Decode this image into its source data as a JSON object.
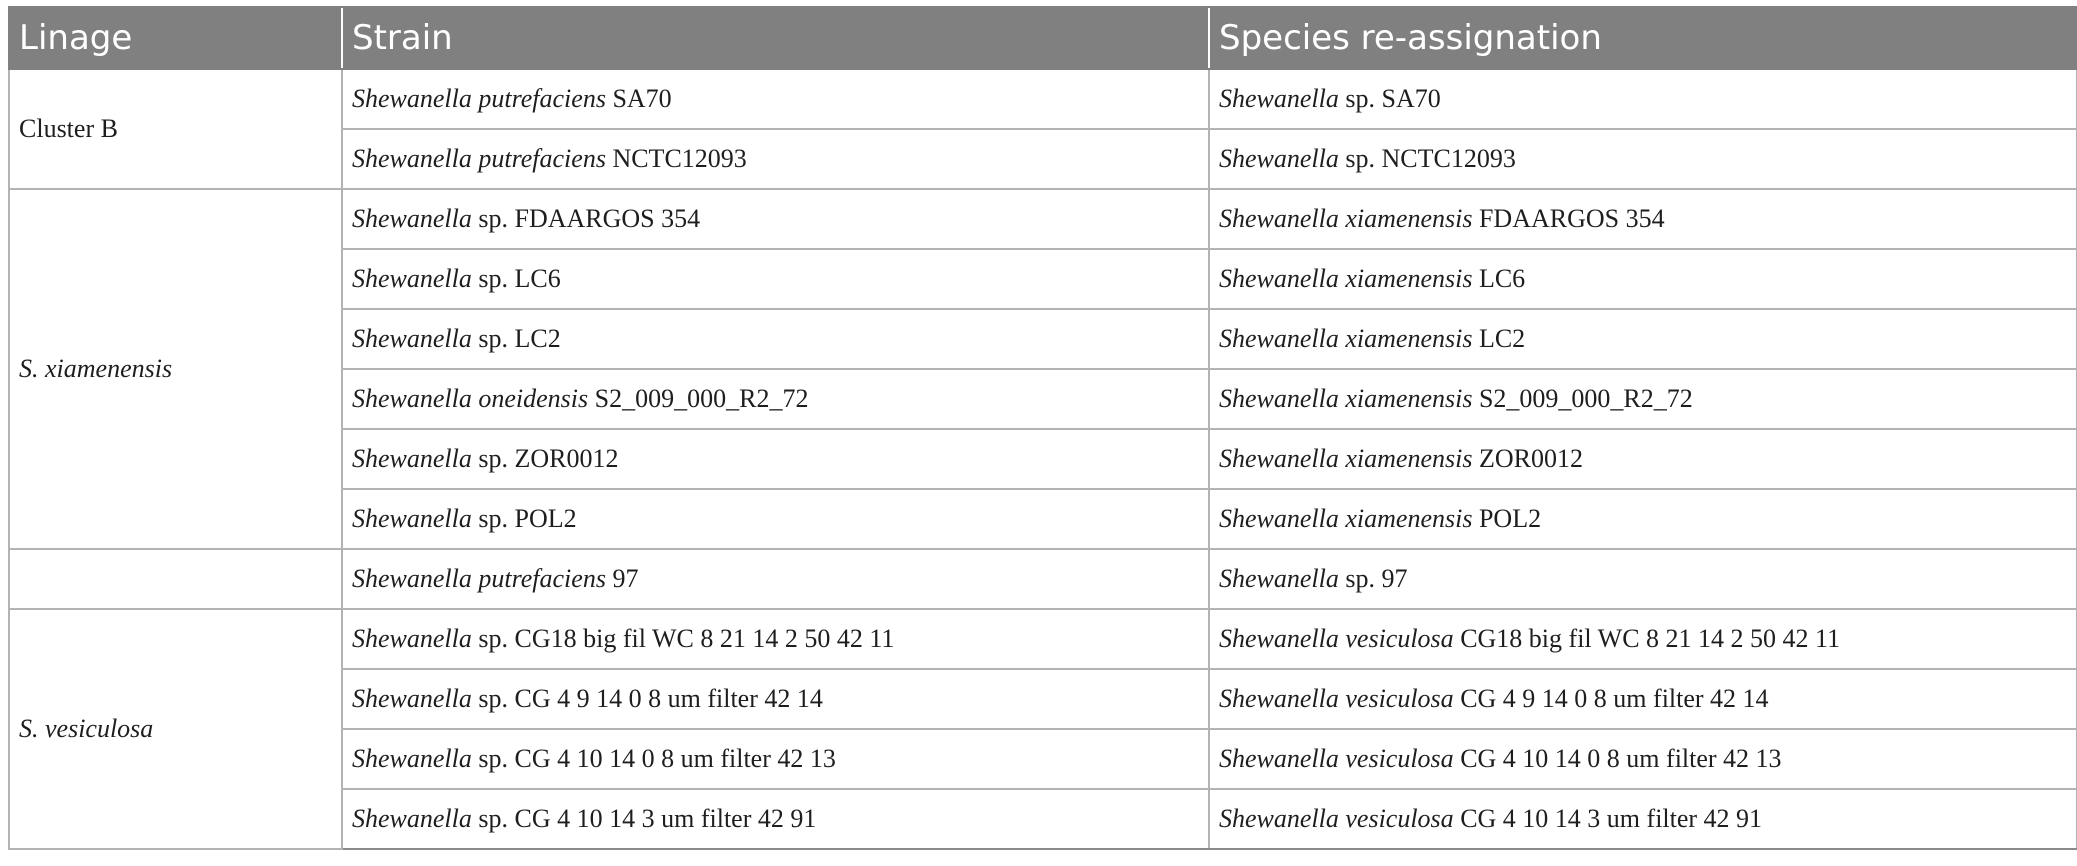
{
  "headers": [
    "Linage",
    "Strain",
    "Species re-assignation"
  ],
  "groups": [
    {
      "lineage": "Cluster B",
      "lineage_italic": false,
      "rows": [
        {
          "strain_italic": "Shewanella putrefaciens",
          "strain_rest": " SA70",
          "species_italic": "Shewanella",
          "species_rest": " sp. SA70"
        },
        {
          "strain_italic": "Shewanella putrefaciens",
          "strain_rest": " NCTC12093",
          "species_italic": "Shewanella",
          "species_rest": " sp. NCTC12093"
        }
      ]
    },
    {
      "lineage": "S. xiamenensis",
      "lineage_italic": true,
      "rows": [
        {
          "strain_italic": "Shewanella",
          "strain_rest": " sp. FDAARGOS 354",
          "species_italic": "Shewanella xiamenensis",
          "species_rest": " FDAARGOS 354"
        },
        {
          "strain_italic": "Shewanella",
          "strain_rest": " sp. LC6",
          "species_italic": "Shewanella xiamenensis",
          "species_rest": " LC6"
        },
        {
          "strain_italic": "Shewanella",
          "strain_rest": " sp. LC2",
          "species_italic": "Shewanella xiamenensis",
          "species_rest": " LC2"
        },
        {
          "strain_italic": "Shewanella oneidensis",
          "strain_rest": " S2_009_000_R2_72",
          "species_italic": "Shewanella xiamenensis",
          "species_rest": " S2_009_000_R2_72"
        },
        {
          "strain_italic": "Shewanella",
          "strain_rest": " sp. ZOR0012",
          "species_italic": "Shewanella xiamenensis",
          "species_rest": " ZOR0012"
        },
        {
          "strain_italic": "Shewanella",
          "strain_rest": " sp. POL2",
          "species_italic": "Shewanella xiamenensis",
          "species_rest": " POL2"
        }
      ]
    },
    {
      "lineage": "",
      "lineage_italic": false,
      "rows": [
        {
          "strain_italic": "Shewanella putrefaciens",
          "strain_rest": " 97",
          "species_italic": "Shewanella",
          "species_rest": " sp. 97"
        }
      ]
    },
    {
      "lineage": "S. vesiculosa",
      "lineage_italic": true,
      "rows": [
        {
          "strain_italic": "Shewanella",
          "strain_rest": " sp. CG18 big fil WC 8 21 14 2 50 42 11",
          "species_italic": "Shewanella vesiculosa",
          "species_rest": " CG18 big fil WC 8 21 14 2 50 42 11"
        },
        {
          "strain_italic": "Shewanella",
          "strain_rest": " sp. CG 4 9 14 0 8 um filter 42 14",
          "species_italic": "Shewanella vesiculosa",
          "species_rest": " CG 4 9 14 0 8 um filter 42 14"
        },
        {
          "strain_italic": "Shewanella",
          "strain_rest": " sp. CG 4 10 14 0 8 um filter 42 13",
          "species_italic": "Shewanella vesiculosa",
          "species_rest": " CG 4 10 14 0 8 um filter 42 13"
        },
        {
          "strain_italic": "Shewanella",
          "strain_rest": " sp. CG 4 10 14 3 um filter 42 91",
          "species_italic": "Shewanella vesiculosa",
          "species_rest": " CG 4 10 14 3 um filter 42 91"
        }
      ]
    }
  ]
}
